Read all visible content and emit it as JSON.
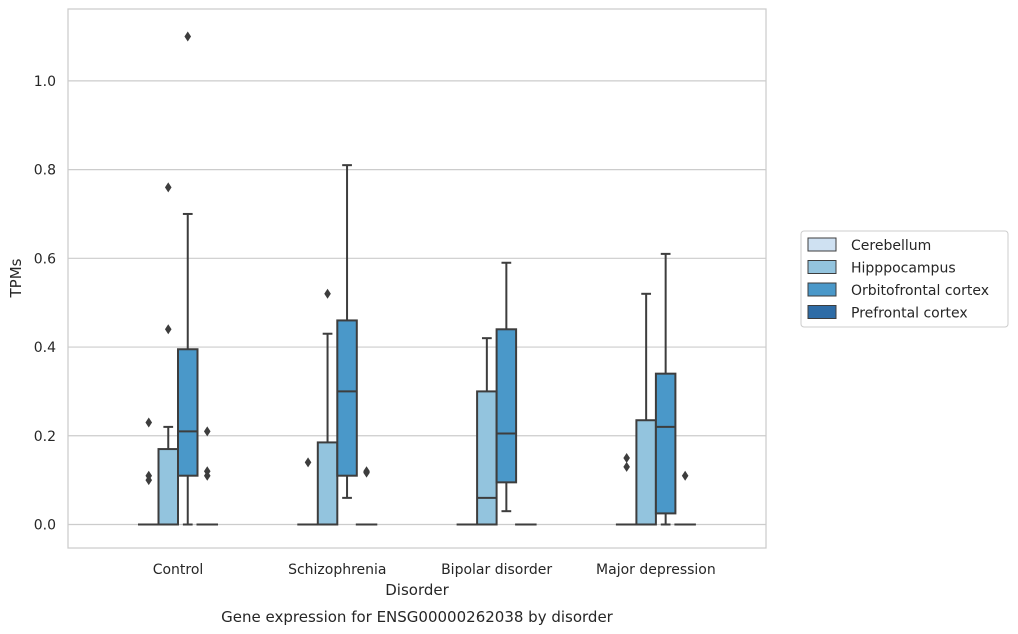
{
  "chart_data": {
    "type": "box",
    "title": "Gene expression for ENSG00000262038 by disorder",
    "xlabel": "Disorder",
    "ylabel": "TPMs",
    "ylim": [
      -0.053,
      1.162
    ],
    "yticks": [
      "0.0",
      "0.2",
      "0.4",
      "0.6",
      "0.8",
      "1.0"
    ],
    "ytick_values": [
      0.0,
      0.2,
      0.4,
      0.6,
      0.8,
      1.0
    ],
    "categories": [
      "Control",
      "Schizophrenia",
      "Bipolar disorder",
      "Major depression"
    ],
    "grid": "horizontal",
    "legend_position": "right",
    "series": [
      {
        "name": "Cerebellum",
        "color": "#cfe1f2",
        "boxes": [
          {
            "q1": 0,
            "median": 0,
            "q3": 0,
            "whisker_low": 0,
            "whisker_high": 0,
            "outliers": [
              0.23,
              0.11,
              0.1
            ]
          },
          {
            "q1": 0,
            "median": 0,
            "q3": 0,
            "whisker_low": 0,
            "whisker_high": 0,
            "outliers": [
              0.14
            ]
          },
          {
            "q1": 0,
            "median": 0,
            "q3": 0,
            "whisker_low": 0,
            "whisker_high": 0,
            "outliers": []
          },
          {
            "q1": 0,
            "median": 0,
            "q3": 0,
            "whisker_low": 0,
            "whisker_high": 0,
            "outliers": [
              0.15,
              0.13
            ]
          }
        ]
      },
      {
        "name": "Hipppocampus",
        "color": "#93c4de",
        "boxes": [
          {
            "q1": 0,
            "median": 0,
            "q3": 0.17,
            "whisker_low": 0,
            "whisker_high": 0.22,
            "outliers": [
              0.76,
              0.44
            ]
          },
          {
            "q1": 0,
            "median": 0,
            "q3": 0.185,
            "whisker_low": 0,
            "whisker_high": 0.43,
            "outliers": [
              0.52
            ]
          },
          {
            "q1": 0,
            "median": 0.06,
            "q3": 0.3,
            "whisker_low": 0,
            "whisker_high": 0.42,
            "outliers": []
          },
          {
            "q1": 0,
            "median": 0,
            "q3": 0.235,
            "whisker_low": 0,
            "whisker_high": 0.52,
            "outliers": []
          }
        ]
      },
      {
        "name": "Orbitofrontal cortex",
        "color": "#4a98c9",
        "boxes": [
          {
            "q1": 0.11,
            "median": 0.21,
            "q3": 0.395,
            "whisker_low": 0,
            "whisker_high": 0.7,
            "outliers": [
              1.1
            ]
          },
          {
            "q1": 0.11,
            "median": 0.3,
            "q3": 0.46,
            "whisker_low": 0.06,
            "whisker_high": 0.81,
            "outliers": []
          },
          {
            "q1": 0.095,
            "median": 0.205,
            "q3": 0.44,
            "whisker_low": 0.03,
            "whisker_high": 0.59,
            "outliers": []
          },
          {
            "q1": 0.025,
            "median": 0.22,
            "q3": 0.34,
            "whisker_low": 0,
            "whisker_high": 0.61,
            "outliers": []
          }
        ]
      },
      {
        "name": "Prefrontal cortex",
        "color": "#2e6ca6",
        "boxes": [
          {
            "q1": 0,
            "median": 0,
            "q3": 0,
            "whisker_low": 0,
            "whisker_high": 0,
            "outliers": [
              0.21,
              0.12,
              0.11
            ]
          },
          {
            "q1": 0,
            "median": 0,
            "q3": 0,
            "whisker_low": 0,
            "whisker_high": 0,
            "outliers": [
              0.12,
              0.117
            ]
          },
          {
            "q1": 0,
            "median": 0,
            "q3": 0,
            "whisker_low": 0,
            "whisker_high": 0,
            "outliers": []
          },
          {
            "q1": 0,
            "median": 0,
            "q3": 0,
            "whisker_low": 0,
            "whisker_high": 0,
            "outliers": [
              0.11
            ]
          }
        ]
      }
    ]
  }
}
